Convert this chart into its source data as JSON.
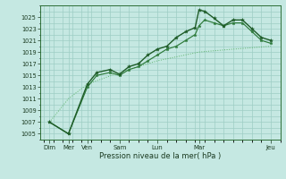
{
  "xlabel": "Pression niveau de la mer( hPa )",
  "bg_color": "#c5e8e2",
  "grid_color": "#9ecdc4",
  "line_color_dark": "#1e5c28",
  "line_color_mid": "#2d7a3a",
  "line_color_light": "#4aaa55",
  "ylim": [
    1004,
    1027
  ],
  "yticks": [
    1005,
    1007,
    1009,
    1011,
    1013,
    1015,
    1017,
    1019,
    1021,
    1023,
    1025
  ],
  "xlim": [
    -0.2,
    12.5
  ],
  "xtick_positions": [
    0.3,
    1.3,
    2.3,
    4.0,
    6.0,
    8.2,
    12.0
  ],
  "xtick_labels": [
    "Dim",
    "Mer",
    "Ven",
    "Sam",
    "Lun",
    "Mar",
    "Jeu"
  ],
  "series1_x": [
    0.3,
    1.3,
    2.3,
    2.8,
    3.5,
    4.0,
    4.5,
    5.0,
    5.5,
    6.0,
    6.5,
    7.0,
    7.5,
    8.0,
    8.2,
    8.5,
    9.0,
    9.5,
    10.0,
    10.5,
    11.0,
    11.5,
    12.0
  ],
  "series1_y": [
    1007.0,
    1005.0,
    1013.5,
    1015.5,
    1016.0,
    1015.2,
    1016.5,
    1017.0,
    1018.5,
    1019.5,
    1020.0,
    1021.5,
    1022.5,
    1023.2,
    1026.2,
    1026.0,
    1024.8,
    1023.5,
    1024.5,
    1024.5,
    1023.0,
    1021.5,
    1021.0
  ],
  "series2_x": [
    0.3,
    1.3,
    2.3,
    2.8,
    3.5,
    4.0,
    4.5,
    5.0,
    5.5,
    6.0,
    6.5,
    7.0,
    7.5,
    8.0,
    8.2,
    8.5,
    9.0,
    9.5,
    10.0,
    10.5,
    11.0,
    11.5,
    12.0
  ],
  "series2_y": [
    1007.0,
    1005.0,
    1013.0,
    1015.0,
    1015.5,
    1015.0,
    1016.0,
    1016.5,
    1017.5,
    1018.5,
    1019.5,
    1020.0,
    1021.0,
    1022.0,
    1023.5,
    1024.5,
    1024.0,
    1023.5,
    1024.0,
    1024.0,
    1022.5,
    1021.0,
    1020.5
  ],
  "series3_x": [
    0.3,
    1.3,
    2.3,
    4.0,
    6.0,
    8.2,
    10.0,
    12.0
  ],
  "series3_y": [
    1007.0,
    1011.0,
    1013.5,
    1015.5,
    1017.5,
    1019.0,
    1019.5,
    1020.0
  ]
}
